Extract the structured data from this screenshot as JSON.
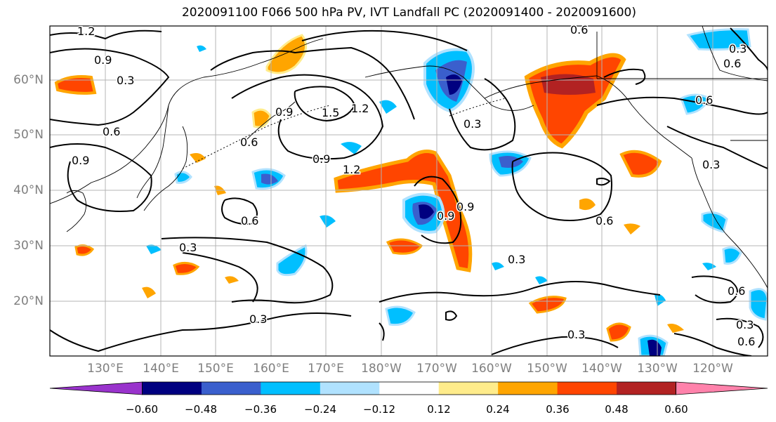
{
  "title": "2020091100 F066 500 hPa PV, IVT Landfall PC (2020091400 - 2020091600)",
  "lat_labels": [
    "60°N",
    "50°N",
    "40°N",
    "30°N",
    "20°N"
  ],
  "lon_labels": [
    "130°E",
    "140°E",
    "150°E",
    "160°E",
    "170°E",
    "180°W",
    "170°W",
    "160°W",
    "150°W",
    "140°W",
    "130°W",
    "120°W"
  ],
  "contour_labels": [
    "1.2",
    "0.9",
    "0.3",
    "0.6",
    "0.9",
    "0.9",
    "1.5",
    "1.2",
    "0.6",
    "0.9",
    "1.2",
    "0.6",
    "0.6",
    "0.3",
    "0.3",
    "0.9",
    "0.9",
    "0.3",
    "0.6",
    "0.6",
    "0.3",
    "0.6",
    "0.3",
    "0.6",
    "0.3",
    "0.3",
    "0.6",
    "0.3"
  ],
  "colorbar": {
    "ticks": [
      "−0.60",
      "−0.48",
      "−0.36",
      "−0.24",
      "−0.12",
      "0.12",
      "0.24",
      "0.36",
      "0.48",
      "0.60"
    ],
    "colors": [
      "#9933cc",
      "#000080",
      "#3a5fcd",
      "#00bfff",
      "#b0e2ff",
      "#ffffff",
      "#ffec8b",
      "#ffa500",
      "#ff4500",
      "#b22222",
      "#ff82ab"
    ]
  }
}
